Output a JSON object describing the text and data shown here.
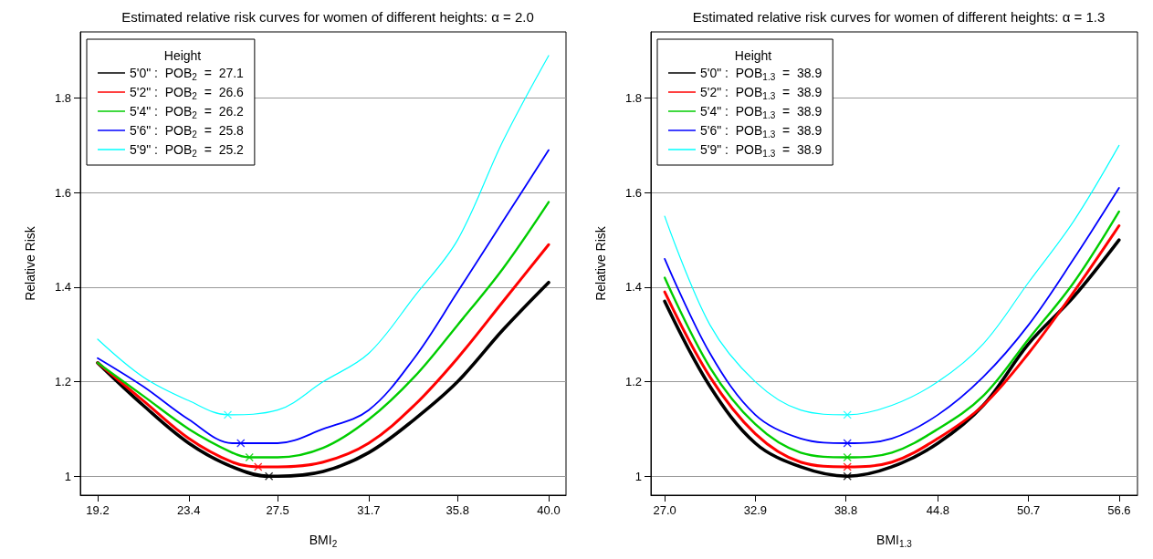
{
  "chart_data": [
    {
      "type": "line",
      "title": "Estimated relative risk curves for women of different heights: α = 2.0",
      "xlabel": "BMI$_{2}$",
      "ylabel": "Relative Risk",
      "legend_title": "Height",
      "legend": "top left",
      "grid": "y",
      "marker": "none",
      "line_style": "solid",
      "xlim": [
        18.4,
        40.8
      ],
      "xticks": [
        19.2,
        23.4,
        27.5,
        31.7,
        35.8,
        {
          "value": 40,
          "label": "40.0"
        }
      ],
      "ylim": [
        0.96,
        1.94
      ],
      "yticks": [
        1,
        1.2,
        1.4,
        1.6,
        1.8
      ],
      "series": [
        {
          "type": "line",
          "name": "5'0\" :  POB$_{2}$  =  27.1",
          "color": "#000000",
          "x": [
            19.2,
            21.3,
            23.4,
            25.4,
            27.1,
            27.5,
            29.6,
            31.7,
            33.8,
            35.8,
            37.9,
            40.0
          ],
          "values": [
            1.24,
            1.15,
            1.07,
            1.02,
            1.0,
            1.0,
            1.01,
            1.05,
            1.12,
            1.2,
            1.31,
            1.41
          ]
        },
        {
          "type": "line",
          "name": "5'2\" :  POB$_{2}$  =  26.6",
          "color": "#ff0000",
          "x": [
            19.2,
            21.3,
            23.4,
            25.4,
            26.6,
            27.5,
            29.6,
            31.7,
            33.8,
            35.8,
            37.9,
            40.0
          ],
          "values": [
            1.24,
            1.16,
            1.08,
            1.03,
            1.02,
            1.02,
            1.03,
            1.07,
            1.15,
            1.25,
            1.37,
            1.49
          ]
        },
        {
          "type": "line",
          "name": "5'4\" :  POB$_{2}$  =  26.2",
          "color": "#00cd00",
          "x": [
            19.2,
            21.3,
            23.4,
            25.4,
            26.2,
            27.5,
            29.6,
            31.7,
            33.8,
            35.8,
            37.9,
            40.0
          ],
          "values": [
            1.24,
            1.17,
            1.1,
            1.05,
            1.04,
            1.04,
            1.06,
            1.12,
            1.21,
            1.32,
            1.44,
            1.58
          ]
        },
        {
          "type": "line",
          "name": "5'6\" :  POB$_{2}$  =  25.8",
          "color": "#0000ff",
          "x": [
            19.2,
            21.3,
            23.4,
            25.4,
            25.8,
            27.5,
            29.6,
            31.7,
            33.8,
            35.8,
            37.9,
            40.0
          ],
          "values": [
            1.25,
            1.19,
            1.12,
            1.07,
            1.07,
            1.07,
            1.1,
            1.14,
            1.25,
            1.39,
            1.54,
            1.69
          ]
        },
        {
          "type": "line",
          "name": "5'9\" :  POB$_{2}$  =  25.2",
          "color": "#00ffff",
          "x": [
            19.2,
            21.3,
            23.4,
            25.2,
            27.5,
            29.6,
            31.7,
            33.8,
            35.8,
            37.9,
            40.0
          ],
          "values": [
            1.29,
            1.21,
            1.16,
            1.13,
            1.14,
            1.2,
            1.26,
            1.38,
            1.5,
            1.71,
            1.89
          ]
        },
        {
          "type": "scatter",
          "marker": "cross",
          "color": "#000000",
          "x": [
            27.1
          ],
          "values": [
            1.0
          ]
        },
        {
          "type": "scatter",
          "marker": "cross",
          "color": "#ff0000",
          "x": [
            26.6
          ],
          "values": [
            1.02
          ]
        },
        {
          "type": "scatter",
          "marker": "cross",
          "color": "#00cd00",
          "x": [
            26.2
          ],
          "values": [
            1.04
          ]
        },
        {
          "type": "scatter",
          "marker": "cross",
          "color": "#0000ff",
          "x": [
            25.8
          ],
          "values": [
            1.07
          ]
        },
        {
          "type": "scatter",
          "marker": "cross",
          "color": "#00ffff",
          "x": [
            25.2
          ],
          "values": [
            1.13
          ]
        }
      ]
    },
    {
      "type": "line",
      "title": "Estimated relative risk curves for women of different heights: α = 1.3",
      "xlabel": "BMI$_{1.3}$",
      "ylabel": "Relative Risk",
      "legend_title": "Height",
      "legend": "top left",
      "grid": "y",
      "marker": "none",
      "line_style": "solid",
      "xlim": [
        26.1,
        57.8
      ],
      "xticks": [
        {
          "value": 27,
          "label": "27.0"
        },
        32.9,
        38.8,
        44.8,
        50.7,
        56.6
      ],
      "ylim": [
        0.96,
        1.94
      ],
      "yticks": [
        1,
        1.2,
        1.4,
        1.6,
        1.8
      ],
      "series": [
        {
          "type": "line",
          "name": "5'0\" :  POB$_{1.3}$  =  38.9",
          "color": "#000000",
          "x": [
            27.0,
            29.95,
            32.9,
            35.85,
            38.9,
            41.8,
            44.8,
            47.75,
            50.7,
            53.65,
            56.6
          ],
          "values": [
            1.37,
            1.19,
            1.07,
            1.02,
            1.0,
            1.02,
            1.07,
            1.15,
            1.28,
            1.38,
            1.5
          ]
        },
        {
          "type": "line",
          "name": "5'2\" :  POB$_{1.3}$  =  38.9",
          "color": "#ff0000",
          "x": [
            27.0,
            29.95,
            32.9,
            35.85,
            38.9,
            41.8,
            44.8,
            47.75,
            50.7,
            53.65,
            56.6
          ],
          "values": [
            1.39,
            1.21,
            1.09,
            1.03,
            1.02,
            1.03,
            1.08,
            1.15,
            1.26,
            1.39,
            1.53
          ]
        },
        {
          "type": "line",
          "name": "5'4\" :  POB$_{1.3}$  =  38.9",
          "color": "#00cd00",
          "x": [
            27.0,
            29.95,
            32.9,
            35.85,
            38.9,
            41.8,
            44.8,
            47.75,
            50.7,
            53.65,
            56.6
          ],
          "values": [
            1.42,
            1.23,
            1.11,
            1.05,
            1.04,
            1.05,
            1.1,
            1.17,
            1.29,
            1.41,
            1.56
          ]
        },
        {
          "type": "line",
          "name": "5'6\" :  POB$_{1.3}$  =  38.9",
          "color": "#0000ff",
          "x": [
            27.0,
            29.95,
            32.9,
            35.85,
            38.9,
            41.8,
            44.8,
            47.75,
            50.7,
            53.65,
            56.6
          ],
          "values": [
            1.46,
            1.26,
            1.13,
            1.08,
            1.07,
            1.08,
            1.13,
            1.21,
            1.32,
            1.46,
            1.61
          ]
        },
        {
          "type": "line",
          "name": "5'9\" :  POB$_{1.3}$  =  38.9",
          "color": "#00ffff",
          "x": [
            27.0,
            29.95,
            32.9,
            35.85,
            38.9,
            41.8,
            44.8,
            47.75,
            50.7,
            53.65,
            56.6
          ],
          "values": [
            1.55,
            1.32,
            1.2,
            1.14,
            1.13,
            1.15,
            1.2,
            1.28,
            1.41,
            1.54,
            1.7
          ]
        },
        {
          "type": "scatter",
          "marker": "cross",
          "color": "#000000",
          "x": [
            38.9
          ],
          "values": [
            1.0
          ]
        },
        {
          "type": "scatter",
          "marker": "cross",
          "color": "#ff0000",
          "x": [
            38.9
          ],
          "values": [
            1.02
          ]
        },
        {
          "type": "scatter",
          "marker": "cross",
          "color": "#00cd00",
          "x": [
            38.9
          ],
          "values": [
            1.04
          ]
        },
        {
          "type": "scatter",
          "marker": "cross",
          "color": "#0000ff",
          "x": [
            38.9
          ],
          "values": [
            1.07
          ]
        },
        {
          "type": "scatter",
          "marker": "cross",
          "color": "#00ffff",
          "x": [
            38.9
          ],
          "values": [
            1.13
          ]
        }
      ]
    }
  ]
}
